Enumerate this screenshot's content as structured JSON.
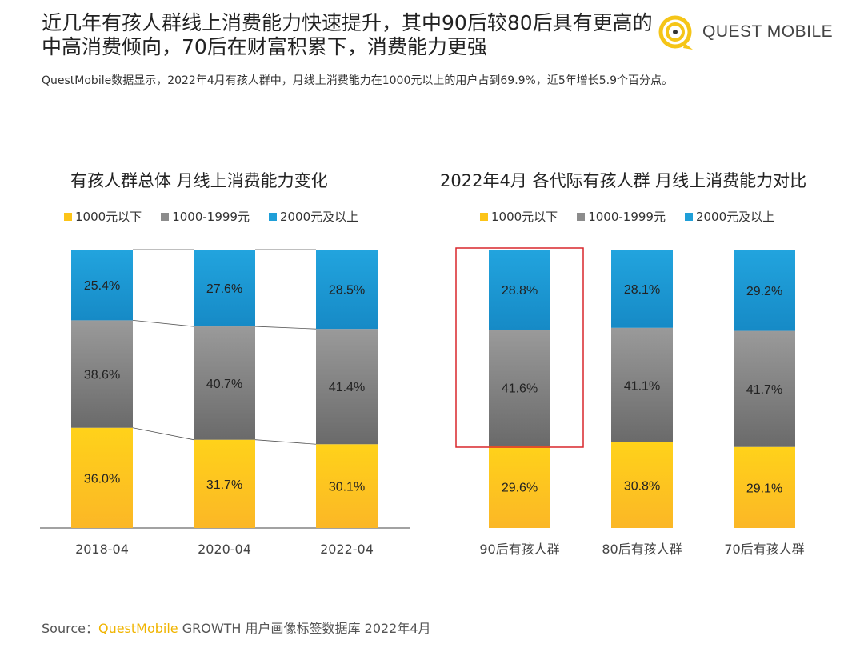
{
  "header": {
    "title": "近几年有孩人群线上消费能力快速提升，其中90后较80后具有更高的中高消费倾向，70后在财富积累下，消费能力更强",
    "subtitle": "QuestMobile数据显示，2022年4月有孩人群中，月线上消费能力在1000元以上的用户占到69.9%，近5年增长5.9个百分点。",
    "logo_text": "QUEST MOBILE"
  },
  "colors": {
    "low": "#fcc418",
    "mid": "#8c8c8c",
    "high": "#1f9fd8",
    "highlight": "#d9262c"
  },
  "chart_data": [
    {
      "type": "bar",
      "stacked": true,
      "title": "有孩人群总体 月线上消费能力变化",
      "legend": [
        "1000元以下",
        "1000-1999元",
        "2000元及以上"
      ],
      "categories": [
        "2018-04",
        "2020-04",
        "2022-04"
      ],
      "series": [
        {
          "name": "1000元以下",
          "values": [
            36.0,
            31.7,
            30.1
          ]
        },
        {
          "name": "1000-1999元",
          "values": [
            38.6,
            40.7,
            41.4
          ]
        },
        {
          "name": "2000元及以上",
          "values": [
            25.4,
            27.6,
            28.5
          ]
        }
      ],
      "ylim": [
        0,
        100
      ]
    },
    {
      "type": "bar",
      "stacked": true,
      "title": "2022年4月 各代际有孩人群 月线上消费能力对比",
      "legend": [
        "1000元以下",
        "1000-1999元",
        "2000元及以上"
      ],
      "categories": [
        "90后有孩人群",
        "80后有孩人群",
        "70后有孩人群"
      ],
      "series": [
        {
          "name": "1000元以下",
          "values": [
            29.6,
            30.8,
            29.1
          ]
        },
        {
          "name": "1000-1999元",
          "values": [
            41.6,
            41.1,
            41.7
          ]
        },
        {
          "name": "2000元及以上",
          "values": [
            28.8,
            28.1,
            29.2
          ]
        }
      ],
      "ylim": [
        0,
        100
      ],
      "highlighted": "90后有孩人群"
    }
  ],
  "footer": {
    "label": "Source：",
    "brand": "QuestMobile",
    "rest": " GROWTH 用户画像标签数据库 2022年4月"
  }
}
